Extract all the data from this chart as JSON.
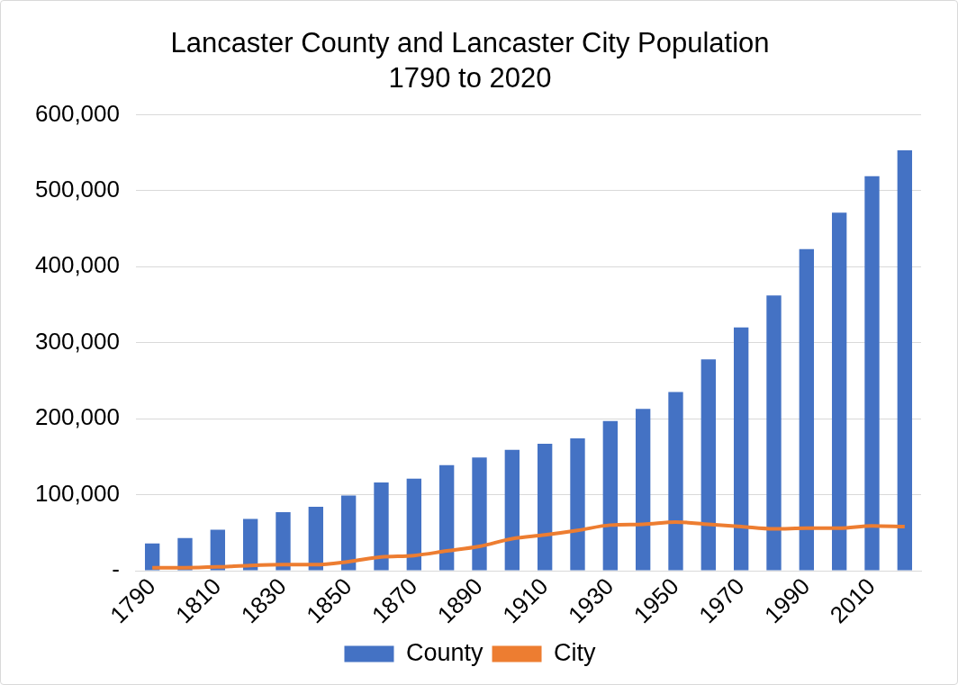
{
  "chart_data": {
    "type": "bar",
    "title": "Lancaster County and Lancaster City Population",
    "subtitle": "1790 to 2020",
    "categories": [
      "1790",
      null,
      "1810",
      null,
      "1830",
      null,
      "1850",
      null,
      "1870",
      null,
      "1890",
      null,
      "1910",
      null,
      "1930",
      null,
      "1950",
      null,
      "1970",
      null,
      "1990",
      null,
      "2010",
      null
    ],
    "series": [
      {
        "name": "County",
        "color": "#4472c4",
        "values": [
          36000,
          43000,
          54000,
          68000,
          77000,
          84000,
          99000,
          116000,
          121000,
          139000,
          149000,
          159000,
          167000,
          174000,
          197000,
          213000,
          235000,
          278000,
          320000,
          362000,
          423000,
          471000,
          519000,
          553000
        ]
      },
      {
        "name": "City",
        "type": "line",
        "color": "#ed7d31",
        "values": [
          4000,
          4000,
          5000,
          7000,
          8000,
          8000,
          12000,
          18000,
          20000,
          26000,
          32000,
          42000,
          47000,
          53000,
          60000,
          61000,
          64000,
          61000,
          58000,
          55000,
          56000,
          56000,
          59000,
          58000
        ]
      }
    ],
    "ylim": [
      0,
      600000
    ],
    "yticks": [
      {
        "value": 0,
        "label": "-"
      },
      {
        "value": 100000,
        "label": "100,000"
      },
      {
        "value": 200000,
        "label": "200,000"
      },
      {
        "value": 300000,
        "label": "300,000"
      },
      {
        "value": 400000,
        "label": "400,000"
      },
      {
        "value": 500000,
        "label": "500,000"
      },
      {
        "value": 600000,
        "label": "600,000"
      }
    ],
    "grid": "y",
    "legend": "bottom",
    "marker": "none"
  }
}
